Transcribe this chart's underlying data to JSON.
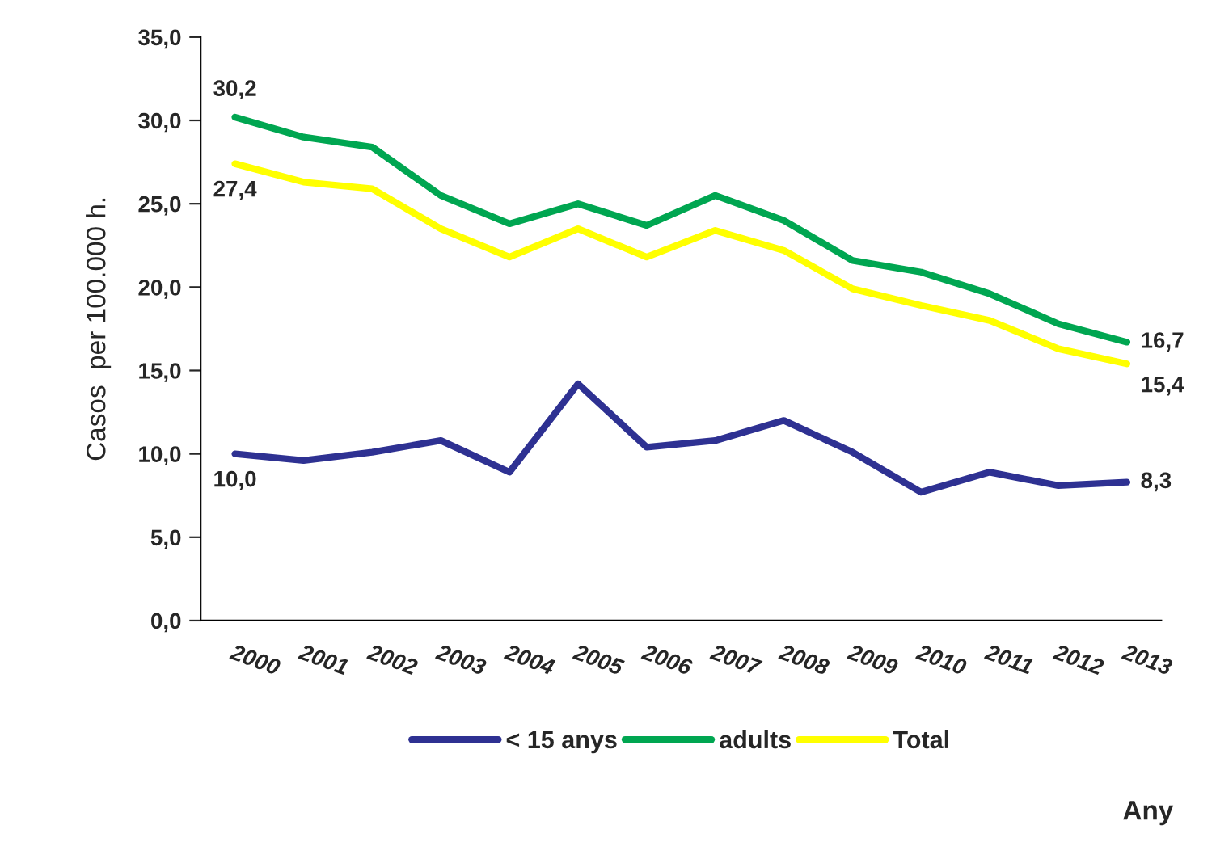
{
  "chart_data": {
    "type": "line",
    "xlabel": "Any",
    "ylabel": "Casos  per 100.000 h.",
    "categories": [
      "2000",
      "2001",
      "2002",
      "2003",
      "2004",
      "2005",
      "2006",
      "2007",
      "2008",
      "2009",
      "2010",
      "2011",
      "2012",
      "2013"
    ],
    "series": [
      {
        "name": "< 15 anys",
        "color": "#2e3192",
        "values": [
          10.0,
          9.6,
          10.1,
          10.8,
          8.9,
          14.2,
          10.4,
          10.8,
          12.0,
          10.1,
          7.7,
          8.9,
          8.1,
          8.3
        ]
      },
      {
        "name": "adults",
        "color": "#00a651",
        "values": [
          30.2,
          29.0,
          28.4,
          25.5,
          23.8,
          25.0,
          23.7,
          25.5,
          24.0,
          21.6,
          20.9,
          19.6,
          17.8,
          16.7
        ]
      },
      {
        "name": "Total",
        "color": "#ffff00",
        "values": [
          27.4,
          26.3,
          25.9,
          23.5,
          21.8,
          23.5,
          21.8,
          23.4,
          22.2,
          19.9,
          18.9,
          18.0,
          16.3,
          15.4
        ]
      }
    ],
    "ylim": [
      0,
      35
    ],
    "yticks": [
      {
        "value": 0,
        "label": "0,0"
      },
      {
        "value": 5,
        "label": "5,0"
      },
      {
        "value": 10,
        "label": "10,0"
      },
      {
        "value": 15,
        "label": "15,0"
      },
      {
        "value": 20,
        "label": "20,0"
      },
      {
        "value": 25,
        "label": "25,0"
      },
      {
        "value": 30,
        "label": "30,0"
      },
      {
        "value": 35,
        "label": "35,0"
      }
    ],
    "annotations": [
      {
        "text": "30,2",
        "x": "2000",
        "y": 30.2
      },
      {
        "text": "27,4",
        "x": "2000",
        "y": 27.4
      },
      {
        "text": "10,0",
        "x": "2000",
        "y": 10.0
      },
      {
        "text": "16,7",
        "x": "2013",
        "y": 16.7
      },
      {
        "text": "15,4",
        "x": "2013",
        "y": 15.4
      },
      {
        "text": "8,3",
        "x": "2013",
        "y": 8.3
      }
    ],
    "legend": "bottom",
    "grid": false,
    "marker": "none",
    "line_style": "solid"
  }
}
